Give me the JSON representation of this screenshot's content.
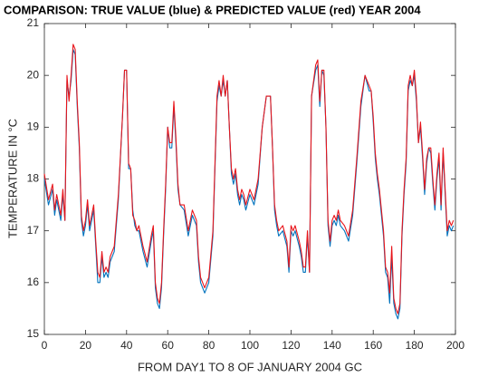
{
  "chart_data": {
    "type": "line",
    "title": "COMPARISON: TRUE VALUE (blue) & PREDICTED VALUE (red) YEAR 2004",
    "xlabel": "FROM DAY1 TO 8 OF JANUARY 2004 GC",
    "ylabel": "TEMPERATURE IN °C",
    "xlim": [
      0,
      200
    ],
    "xticks": [
      0,
      20,
      40,
      60,
      80,
      100,
      120,
      140,
      160,
      180,
      200
    ],
    "ylim": [
      15,
      21
    ],
    "yticks": [
      15,
      16,
      17,
      18,
      19,
      20,
      21
    ],
    "x": [
      0,
      2,
      4,
      5,
      6,
      8,
      9,
      10,
      11,
      12,
      13,
      14,
      15,
      16,
      17,
      18,
      19,
      20,
      21,
      22,
      24,
      25,
      26,
      27,
      28,
      29,
      30,
      31,
      32,
      34,
      36,
      38,
      39,
      40,
      41,
      42,
      43,
      44,
      45,
      46,
      48,
      50,
      52,
      53,
      54,
      55,
      56,
      57,
      58,
      59,
      60,
      61,
      62,
      63,
      64,
      65,
      66,
      68,
      70,
      72,
      74,
      75,
      76,
      77,
      78,
      80,
      82,
      84,
      85,
      86,
      87,
      88,
      89,
      90,
      91,
      92,
      93,
      94,
      95,
      96,
      97,
      98,
      100,
      102,
      104,
      106,
      108,
      110,
      111,
      112,
      113,
      114,
      116,
      118,
      119,
      120,
      121,
      122,
      124,
      125,
      126,
      127,
      128,
      129,
      130,
      132,
      133,
      134,
      135,
      136,
      137,
      138,
      139,
      140,
      141,
      142,
      143,
      144,
      146,
      148,
      150,
      152,
      154,
      156,
      158,
      159,
      160,
      161,
      162,
      163,
      165,
      166,
      167,
      168,
      169,
      170,
      171,
      172,
      173,
      174,
      175,
      176,
      177,
      178,
      179,
      180,
      181,
      182,
      183,
      184,
      185,
      186,
      187,
      188,
      189,
      190,
      191,
      192,
      193,
      194,
      195,
      196,
      197,
      198,
      199
    ],
    "series": [
      {
        "color": "#0072bd",
        "values": [
          18.0,
          17.5,
          17.8,
          17.3,
          17.6,
          17.2,
          17.7,
          17.2,
          19.9,
          19.6,
          19.9,
          20.5,
          20.4,
          19.4,
          18.6,
          17.2,
          16.9,
          17.1,
          17.5,
          17.0,
          17.4,
          16.7,
          16.0,
          16.0,
          16.5,
          16.1,
          16.2,
          16.1,
          16.4,
          16.6,
          17.6,
          19.2,
          20.1,
          20.1,
          18.2,
          18.2,
          17.4,
          17.1,
          17.0,
          17.0,
          16.6,
          16.3,
          16.8,
          17.0,
          15.9,
          15.6,
          15.5,
          15.9,
          16.9,
          17.8,
          19.0,
          18.6,
          18.6,
          19.4,
          18.7,
          17.8,
          17.5,
          17.4,
          16.9,
          17.3,
          17.1,
          16.4,
          16.0,
          15.9,
          15.8,
          16.0,
          16.9,
          19.5,
          19.8,
          19.6,
          19.9,
          19.6,
          19.9,
          19.0,
          18.1,
          17.9,
          18.1,
          17.7,
          17.5,
          17.7,
          17.6,
          17.4,
          17.7,
          17.5,
          17.9,
          19.0,
          19.6,
          19.6,
          18.6,
          17.4,
          17.1,
          16.9,
          17.0,
          16.7,
          16.2,
          17.0,
          16.9,
          17.0,
          16.7,
          16.5,
          16.2,
          16.2,
          16.9,
          16.2,
          19.6,
          20.1,
          20.2,
          19.4,
          20.1,
          20.0,
          19.0,
          17.1,
          16.7,
          17.1,
          17.2,
          17.1,
          17.3,
          17.1,
          17.0,
          16.8,
          17.3,
          18.3,
          19.4,
          20.0,
          19.7,
          19.7,
          19.1,
          18.4,
          18.0,
          17.7,
          16.9,
          16.2,
          16.1,
          15.6,
          16.5,
          15.6,
          15.4,
          15.3,
          15.5,
          16.9,
          17.7,
          18.3,
          19.7,
          19.9,
          19.8,
          20.0,
          19.5,
          18.7,
          19.0,
          18.4,
          17.7,
          18.3,
          18.6,
          18.5,
          17.9,
          17.4,
          18.0,
          18.4,
          17.4,
          18.5,
          17.7,
          16.9,
          17.1,
          17.0,
          17.1
        ]
      },
      {
        "color": "#e8141a",
        "values": [
          18.1,
          17.6,
          17.9,
          17.4,
          17.7,
          17.3,
          17.8,
          17.2,
          20.0,
          19.5,
          20.0,
          20.6,
          20.5,
          19.5,
          18.7,
          17.3,
          17.0,
          17.2,
          17.6,
          17.1,
          17.5,
          16.8,
          16.2,
          16.1,
          16.6,
          16.2,
          16.3,
          16.2,
          16.5,
          16.7,
          17.7,
          19.2,
          20.1,
          20.1,
          18.3,
          18.2,
          17.3,
          17.2,
          17.0,
          17.1,
          16.7,
          16.4,
          16.9,
          17.1,
          16.0,
          15.7,
          15.6,
          16.0,
          17.0,
          17.9,
          19.0,
          18.7,
          18.7,
          19.5,
          18.8,
          17.9,
          17.5,
          17.5,
          17.0,
          17.4,
          17.2,
          16.5,
          16.1,
          16.0,
          15.9,
          16.1,
          17.0,
          19.6,
          19.9,
          19.6,
          20.0,
          19.6,
          19.9,
          19.0,
          18.2,
          18.0,
          18.2,
          17.8,
          17.6,
          17.8,
          17.7,
          17.5,
          17.8,
          17.6,
          18.0,
          19.0,
          19.6,
          19.6,
          18.6,
          17.5,
          17.2,
          17.0,
          17.1,
          16.8,
          16.3,
          17.1,
          17.0,
          17.1,
          16.8,
          16.6,
          16.3,
          16.3,
          17.0,
          16.2,
          19.6,
          20.2,
          20.3,
          19.5,
          20.1,
          20.1,
          19.0,
          17.2,
          16.8,
          17.2,
          17.3,
          17.2,
          17.4,
          17.2,
          17.1,
          16.9,
          17.4,
          18.4,
          19.5,
          20.0,
          19.8,
          19.7,
          19.2,
          18.5,
          18.1,
          17.8,
          17.0,
          16.3,
          16.2,
          15.8,
          16.7,
          15.7,
          15.5,
          15.4,
          15.6,
          17.0,
          17.8,
          18.4,
          19.8,
          20.0,
          19.8,
          20.1,
          19.6,
          18.7,
          19.1,
          18.5,
          17.8,
          18.4,
          18.6,
          18.6,
          18.0,
          17.5,
          18.1,
          18.5,
          17.5,
          18.6,
          17.8,
          17.0,
          17.2,
          17.1,
          17.2
        ]
      }
    ]
  }
}
